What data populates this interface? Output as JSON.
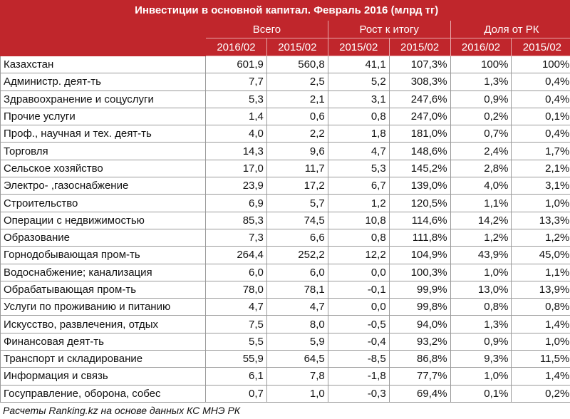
{
  "chart_data": {
    "type": "table",
    "title": "Инвестиции в основной капитал. Февраль 2016 (млрд тг)",
    "groups": [
      "Всего",
      "Рост к итогу",
      "Доля от РК"
    ],
    "columns": [
      "2016/02",
      "2015/02",
      "2015/02",
      "2015/02",
      "2016/02",
      "2015/02"
    ],
    "rows": [
      {
        "name": "Казахстан",
        "values": [
          "601,9",
          "560,8",
          "41,1",
          "107,3%",
          "100%",
          "100%"
        ]
      },
      {
        "name": "Администр. деят-ть",
        "values": [
          "7,7",
          "2,5",
          "5,2",
          "308,3%",
          "1,3%",
          "0,4%"
        ]
      },
      {
        "name": "Здравоохранение и соцуслуги",
        "values": [
          "5,3",
          "2,1",
          "3,1",
          "247,6%",
          "0,9%",
          "0,4%"
        ]
      },
      {
        "name": "Прочие услуги",
        "values": [
          "1,4",
          "0,6",
          "0,8",
          "247,0%",
          "0,2%",
          "0,1%"
        ]
      },
      {
        "name": "Проф., научная и тех. деят-ть",
        "values": [
          "4,0",
          "2,2",
          "1,8",
          "181,0%",
          "0,7%",
          "0,4%"
        ]
      },
      {
        "name": "Торговля",
        "values": [
          "14,3",
          "9,6",
          "4,7",
          "148,6%",
          "2,4%",
          "1,7%"
        ]
      },
      {
        "name": "Сельское хозяйство",
        "values": [
          "17,0",
          "11,7",
          "5,3",
          "145,2%",
          "2,8%",
          "2,1%"
        ]
      },
      {
        "name": "Электро- ,газоснабжение",
        "values": [
          "23,9",
          "17,2",
          "6,7",
          "139,0%",
          "4,0%",
          "3,1%"
        ]
      },
      {
        "name": "Строительство",
        "values": [
          "6,9",
          "5,7",
          "1,2",
          "120,5%",
          "1,1%",
          "1,0%"
        ]
      },
      {
        "name": "Операции с недвижимостью",
        "values": [
          "85,3",
          "74,5",
          "10,8",
          "114,6%",
          "14,2%",
          "13,3%"
        ]
      },
      {
        "name": "Образование",
        "values": [
          "7,3",
          "6,6",
          "0,8",
          "111,8%",
          "1,2%",
          "1,2%"
        ]
      },
      {
        "name": "Горнодобывающая пром-ть",
        "values": [
          "264,4",
          "252,2",
          "12,2",
          "104,9%",
          "43,9%",
          "45,0%"
        ]
      },
      {
        "name": "Водоснабжение; канализация",
        "values": [
          "6,0",
          "6,0",
          "0,0",
          "100,3%",
          "1,0%",
          "1,1%"
        ]
      },
      {
        "name": "Обрабатывающая пром-ть",
        "values": [
          "78,0",
          "78,1",
          "-0,1",
          "99,9%",
          "13,0%",
          "13,9%"
        ]
      },
      {
        "name": "Услуги по проживанию и питанию",
        "values": [
          "4,7",
          "4,7",
          "0,0",
          "99,8%",
          "0,8%",
          "0,8%"
        ]
      },
      {
        "name": "Искусство, развлечения, отдых",
        "values": [
          "7,5",
          "8,0",
          "-0,5",
          "94,0%",
          "1,3%",
          "1,4%"
        ]
      },
      {
        "name": "Финансовая деят-ть",
        "values": [
          "5,5",
          "5,9",
          "-0,4",
          "93,2%",
          "0,9%",
          "1,0%"
        ]
      },
      {
        "name": "Транспорт и складирование",
        "values": [
          "55,9",
          "64,5",
          "-8,5",
          "86,8%",
          "9,3%",
          "11,5%"
        ]
      },
      {
        "name": "Информация и связь",
        "values": [
          "6,1",
          "7,8",
          "-1,8",
          "77,7%",
          "1,0%",
          "1,4%"
        ]
      },
      {
        "name": "Госуправление, оборона, собес",
        "values": [
          "0,7",
          "1,0",
          "-0,3",
          "69,4%",
          "0,1%",
          "0,2%"
        ]
      }
    ],
    "footer": "Расчеты Ranking.kz на основе данных КС МНЭ РК"
  },
  "colors": {
    "header_bg": "#c0262c",
    "header_text": "#ffffff",
    "grid": "#9a9a9a"
  }
}
